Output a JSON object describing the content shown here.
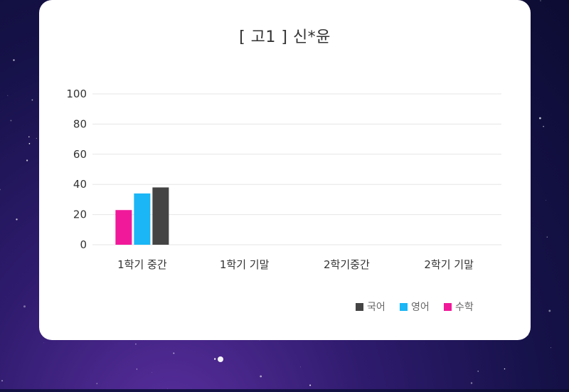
{
  "chart_data": {
    "type": "bar",
    "title": "[ 고1 ] 신*윤",
    "categories": [
      "1학기 중간",
      "1학기 기말",
      "2학기중간",
      "2학기 기말"
    ],
    "yticks": [
      "0",
      "20",
      "40",
      "60",
      "80",
      "100"
    ],
    "ylim": [
      0,
      100
    ],
    "grid": true,
    "legend_position": "bottom-right",
    "series": [
      {
        "name": "수학",
        "color": "#f0199a",
        "values": [
          23,
          null,
          null,
          null
        ]
      },
      {
        "name": "영어",
        "color": "#1ab6f5",
        "values": [
          34,
          null,
          null,
          null
        ]
      },
      {
        "name": "국어",
        "color": "#444444",
        "values": [
          38,
          null,
          null,
          null
        ]
      }
    ],
    "legend_order": [
      "국어",
      "영어",
      "수학"
    ]
  }
}
